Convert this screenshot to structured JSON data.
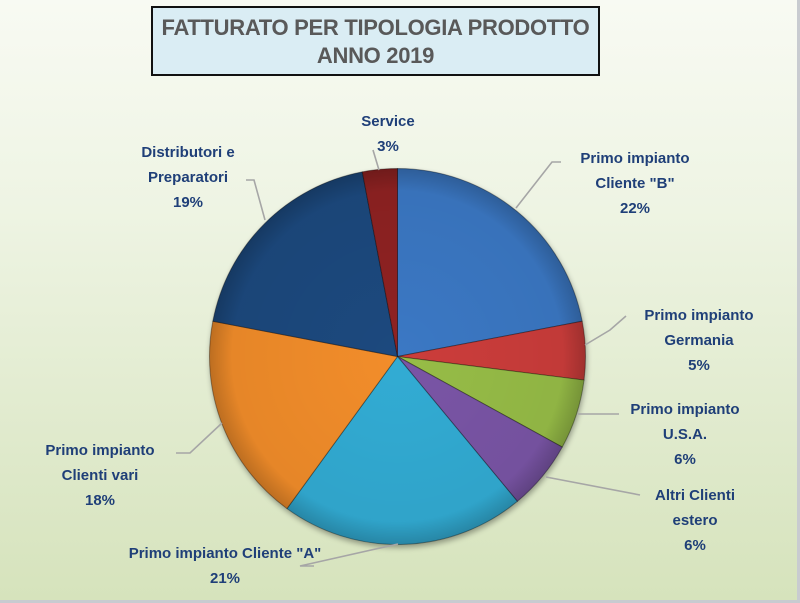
{
  "title": {
    "line1": "FATTURATO  PER TIPOLOGIA PRODOTTO",
    "line2": "ANNO 2019"
  },
  "chart_data": {
    "type": "pie",
    "title": "FATTURATO PER TIPOLOGIA PRODOTTO ANNO 2019",
    "categories": [
      "Primo impianto Cliente \"B\"",
      "Primo impianto Germania",
      "Primo impianto U.S.A.",
      "Altri Clienti estero",
      "Primo impianto Cliente \"A\"",
      "Primo impianto Clienti vari",
      "Distributori e Preparatori",
      "Service"
    ],
    "values": [
      22,
      5,
      6,
      6,
      21,
      18,
      19,
      3
    ],
    "unit": "%",
    "colors": [
      "#3a78c4",
      "#cc3e3b",
      "#97bd47",
      "#7a55a6",
      "#33acd4",
      "#f28d2c",
      "#1f4a7e",
      "#8f2222"
    ],
    "start_angle": "12 o'clock, clockwise",
    "legend": "none (data labels with leader lines)"
  },
  "labels": [
    {
      "lines": [
        "Primo impianto",
        "Cliente \"B\""
      ],
      "pct": "22%"
    },
    {
      "lines": [
        "Primo impianto",
        "Germania"
      ],
      "pct": "5%"
    },
    {
      "lines": [
        "Primo impianto",
        "U.S.A."
      ],
      "pct": "6%"
    },
    {
      "lines": [
        "Altri Clienti",
        "estero"
      ],
      "pct": "6%"
    },
    {
      "lines": [
        "Primo impianto Cliente \"A\""
      ],
      "pct": "21%"
    },
    {
      "lines": [
        "Primo impianto",
        "Clienti vari"
      ],
      "pct": "18%"
    },
    {
      "lines": [
        "Distributori e",
        "Preparatori"
      ],
      "pct": "19%"
    },
    {
      "lines": [
        "Service"
      ],
      "pct": "3%"
    }
  ]
}
